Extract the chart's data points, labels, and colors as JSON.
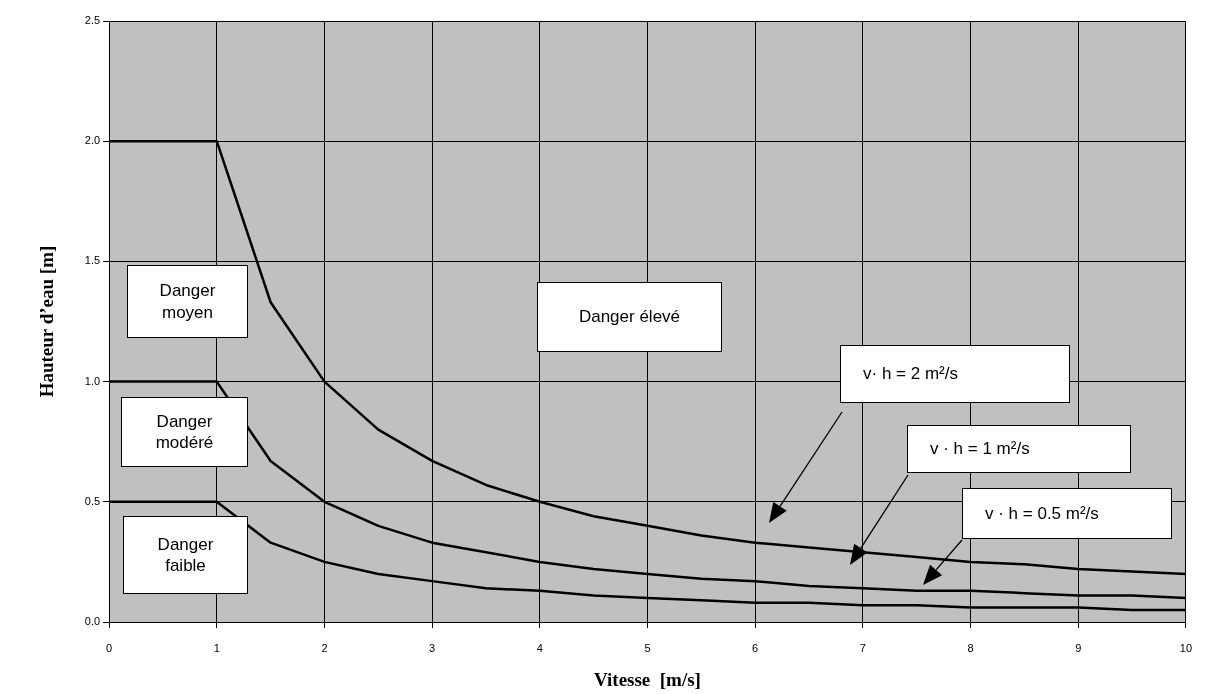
{
  "chart_data": {
    "type": "line",
    "xlabel": "Vitesse  [m/s]",
    "ylabel": "Hauteur d’eau [m]",
    "x": [
      0,
      1,
      1.5,
      2,
      2.5,
      3,
      3.5,
      4,
      4.5,
      5,
      5.5,
      6,
      6.5,
      7,
      7.5,
      8,
      8.5,
      9,
      9.5,
      10
    ],
    "series": [
      {
        "color": "#000000",
        "values": [
          2,
          2,
          1.33,
          1,
          0.8,
          0.67,
          0.57,
          0.5,
          0.44,
          0.4,
          0.36,
          0.33,
          0.31,
          0.29,
          0.27,
          0.25,
          0.24,
          0.22,
          0.21,
          0.2
        ]
      },
      {
        "color": "#000000",
        "values": [
          1,
          1,
          0.67,
          0.5,
          0.4,
          0.33,
          0.29,
          0.25,
          0.22,
          0.2,
          0.18,
          0.17,
          0.15,
          0.14,
          0.13,
          0.13,
          0.12,
          0.11,
          0.11,
          0.1
        ]
      },
      {
        "color": "#000000",
        "values": [
          0.5,
          0.5,
          0.33,
          0.25,
          0.2,
          0.17,
          0.14,
          0.13,
          0.11,
          0.1,
          0.09,
          0.08,
          0.08,
          0.07,
          0.07,
          0.06,
          0.06,
          0.06,
          0.05,
          0.05
        ]
      }
    ],
    "xlim": [
      0,
      10
    ],
    "xticks": [
      0,
      1,
      2,
      3,
      4,
      5,
      6,
      7,
      8,
      9,
      10
    ],
    "ylim": [
      0,
      2.5
    ],
    "yticks": [
      {
        "value": 0,
        "label": "0.0"
      },
      {
        "value": 0.5,
        "label": "0.5"
      },
      {
        "value": 1,
        "label": "1.0"
      },
      {
        "value": 1.5,
        "label": "1.5"
      },
      {
        "value": 2,
        "label": "2.0"
      },
      {
        "value": 2.5,
        "label": "2.5"
      }
    ],
    "grid": true,
    "legend": false,
    "marker": "none",
    "line_style": "solid",
    "annotations": [
      "Danger moyen",
      "Danger modéré",
      "Danger faible",
      "Danger élevé",
      "v· h = 2 m²/s",
      "v · h = 1 m²/s",
      "v · h = 0.5 m²/s"
    ]
  }
}
